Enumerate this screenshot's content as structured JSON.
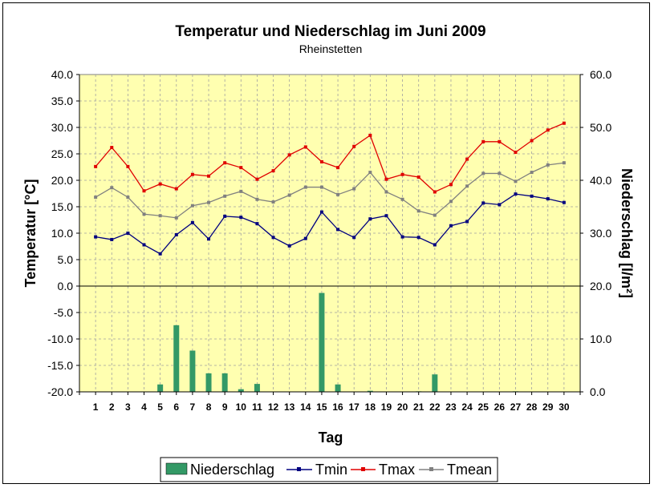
{
  "chart_data": {
    "type": "bar+line",
    "title": "Temperatur und Niederschlag im Juni 2009",
    "subtitle": "Rheinstetten",
    "xlabel": "Tag",
    "ylabel": "Temperatur [°C]",
    "y2label": "Niederschlag [l/m²]",
    "ylim": [
      -20,
      40
    ],
    "y2lim": [
      0,
      60
    ],
    "yticks": [
      "40.0",
      "35.0",
      "30.0",
      "25.0",
      "20.0",
      "15.0",
      "10.0",
      "5.0",
      "0.0",
      "-5.0",
      "-10.0",
      "-15.0",
      "-20.0"
    ],
    "y2ticks": [
      "60.0",
      "50.0",
      "40.0",
      "30.0",
      "20.0",
      "10.0",
      "0.0"
    ],
    "categories": [
      "1",
      "2",
      "3",
      "4",
      "5",
      "6",
      "7",
      "8",
      "9",
      "10",
      "11",
      "12",
      "13",
      "14",
      "15",
      "16",
      "17",
      "18",
      "19",
      "20",
      "21",
      "22",
      "23",
      "24",
      "25",
      "26",
      "27",
      "28",
      "29",
      "30"
    ],
    "grid": true,
    "legend_position": "bottom",
    "plot_background": "#ffffb0",
    "series": [
      {
        "name": "Niederschlag",
        "type": "bar",
        "axis": "y2",
        "color": "#339966",
        "values": [
          0,
          0,
          0,
          0,
          1.4,
          12.6,
          7.8,
          3.5,
          3.5,
          0.5,
          1.5,
          0,
          0,
          0,
          18.7,
          1.4,
          0,
          0.2,
          0,
          0,
          0.1,
          3.3,
          0,
          0,
          0,
          0,
          0.1,
          0,
          0,
          0
        ]
      },
      {
        "name": "Tmin",
        "type": "line",
        "axis": "y",
        "color": "#000080",
        "values": [
          9.3,
          8.8,
          10,
          7.8,
          6.1,
          9.7,
          12,
          8.9,
          13.2,
          13,
          11.8,
          9.2,
          7.6,
          9,
          14,
          10.7,
          9.2,
          12.7,
          13.3,
          9.3,
          9.2,
          7.8,
          11.4,
          12.2,
          15.7,
          15.4,
          17.4,
          17,
          16.5,
          15.8
        ]
      },
      {
        "name": "Tmax",
        "type": "line",
        "axis": "y",
        "color": "#e00000",
        "values": [
          22.6,
          26.2,
          22.6,
          18,
          19.3,
          18.4,
          21.1,
          20.8,
          23.3,
          22.4,
          20.2,
          21.8,
          24.8,
          26.3,
          23.5,
          22.4,
          26.4,
          28.5,
          20.2,
          21.1,
          20.6,
          17.8,
          19.2,
          24,
          27.3,
          27.3,
          25.3,
          27.5,
          29.5,
          30.8
        ]
      },
      {
        "name": "Tmean",
        "type": "line",
        "axis": "y",
        "color": "#808080",
        "values": [
          16.8,
          18.6,
          16.8,
          13.6,
          13.3,
          12.9,
          15.2,
          15.8,
          17,
          17.9,
          16.4,
          15.9,
          17.2,
          18.7,
          18.7,
          17.3,
          18.4,
          21.5,
          17.8,
          16.4,
          14.2,
          13.4,
          16,
          18.9,
          21.3,
          21.3,
          19.8,
          21.5,
          22.9,
          23.3
        ]
      }
    ]
  }
}
